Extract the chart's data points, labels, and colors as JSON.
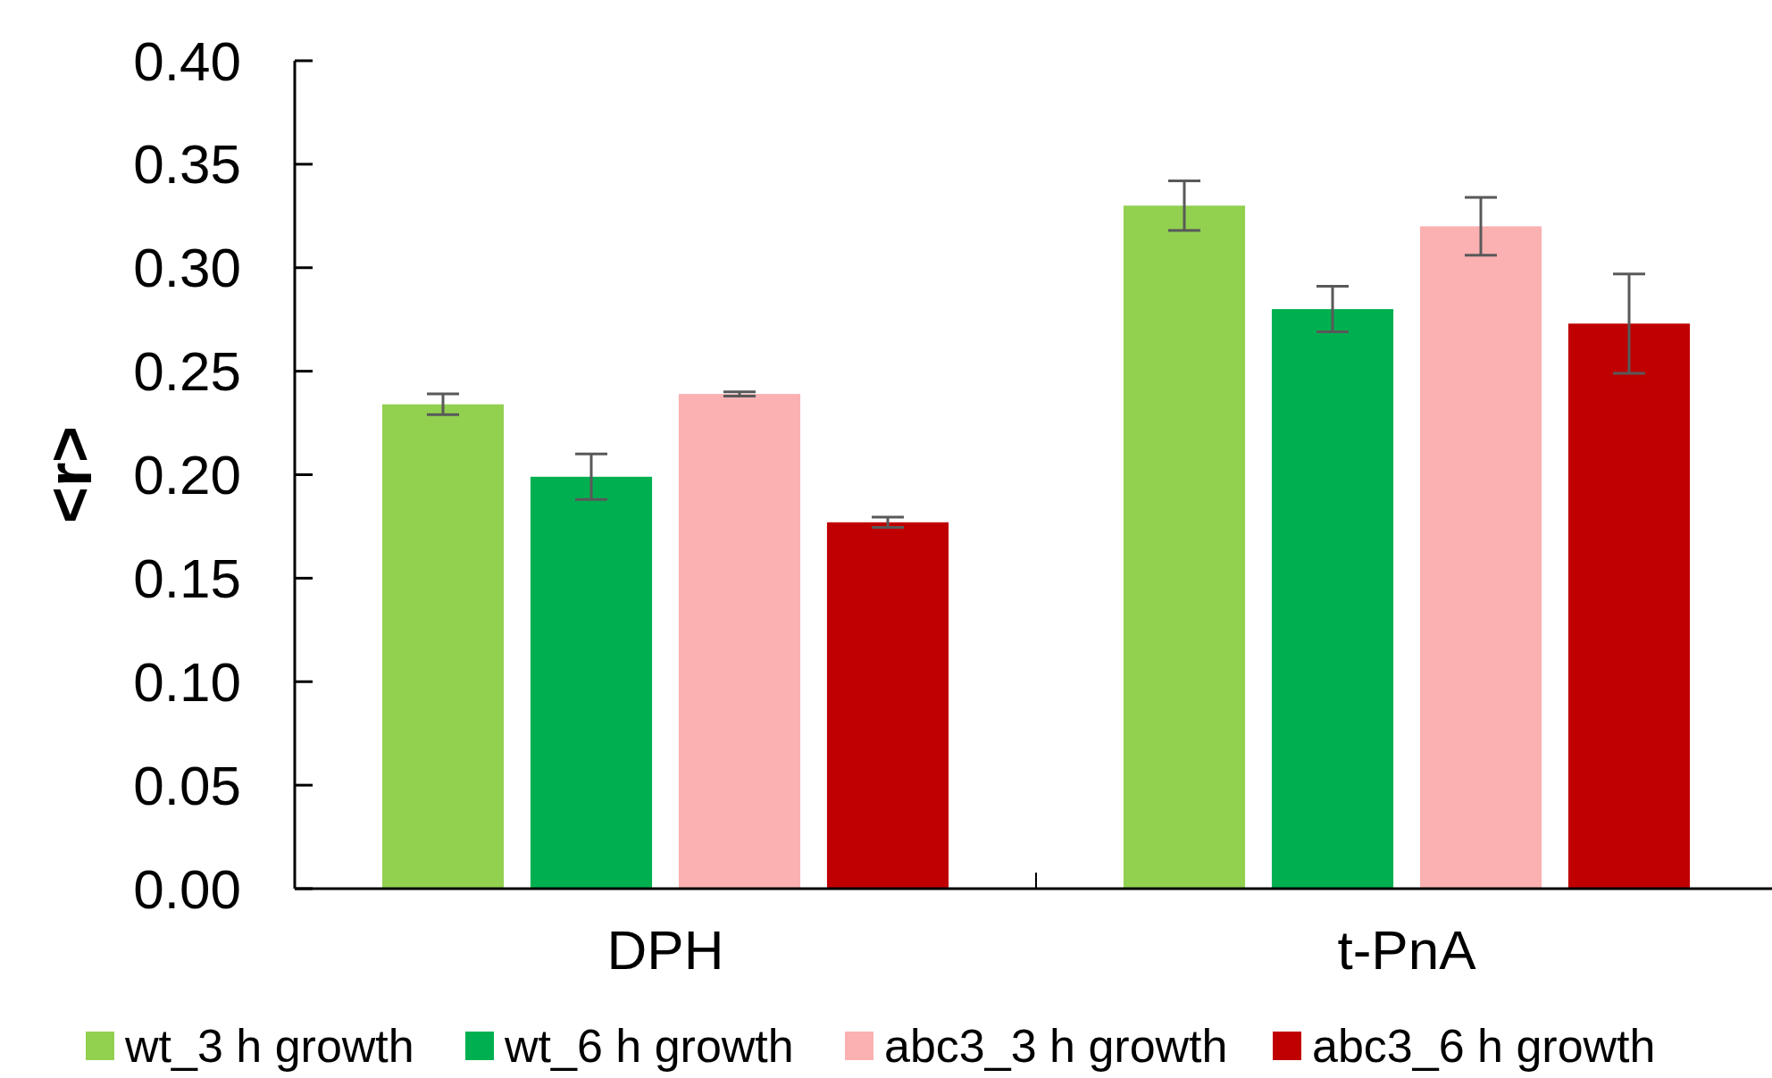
{
  "chart_data": {
    "type": "bar",
    "ylabel": "<r>",
    "categories": [
      "DPH",
      "t-PnA"
    ],
    "series": [
      {
        "name": "wt_3 h growth",
        "color": "#92d050",
        "values": [
          0.234,
          0.33
        ],
        "errors": [
          0.005,
          0.012
        ]
      },
      {
        "name": "wt_6 h growth",
        "color": "#00b050",
        "values": [
          0.199,
          0.28
        ],
        "errors": [
          0.011,
          0.011
        ]
      },
      {
        "name": "abc3_3 h growth",
        "color": "#fbb1b1",
        "values": [
          0.239,
          0.32
        ],
        "errors": [
          0.001,
          0.014
        ]
      },
      {
        "name": "abc3_6 h growth",
        "color": "#c00000",
        "values": [
          0.177,
          0.273
        ],
        "errors": [
          0.0025,
          0.024
        ]
      }
    ],
    "ylim": [
      0,
      0.4
    ],
    "yticks": [
      {
        "value": 0,
        "label": "0.00"
      },
      {
        "value": 0.05,
        "label": "0.05"
      },
      {
        "value": 0.1,
        "label": "0.10"
      },
      {
        "value": 0.15,
        "label": "0.15"
      },
      {
        "value": 0.2,
        "label": "0.20"
      },
      {
        "value": 0.25,
        "label": "0.25"
      },
      {
        "value": 0.3,
        "label": "0.30"
      },
      {
        "value": 0.35,
        "label": "0.35"
      },
      {
        "value": 0.4,
        "label": "0.40"
      }
    ],
    "grid": false,
    "legend": "bottom"
  }
}
